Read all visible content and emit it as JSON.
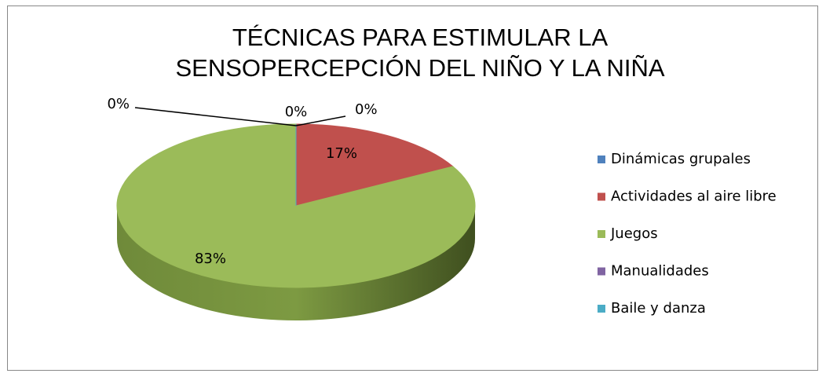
{
  "chart_data": {
    "type": "pie",
    "title": "TÉCNICAS PARA ESTIMULAR LA SENSOPERCEPCIÓN DEL NIÑO Y LA NIÑA",
    "categories": [
      "Dinámicas grupales",
      "Actividades al aire libre",
      "Juegos",
      "Manualidades",
      "Baile y danza"
    ],
    "values": [
      0,
      17,
      83,
      0,
      0
    ],
    "value_labels": [
      "0%",
      "17%",
      "83%",
      "0%",
      "0%"
    ],
    "colors": [
      "#4f81bd",
      "#c0504d",
      "#9bbb59",
      "#8064a2",
      "#4bacc6"
    ],
    "legend": "right"
  }
}
